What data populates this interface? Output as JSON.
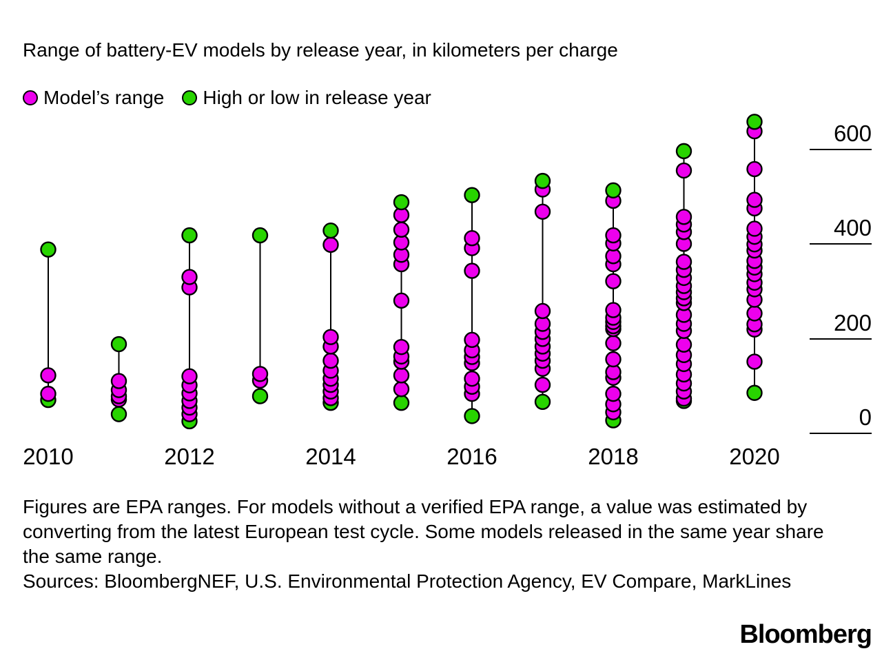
{
  "title": "Range of battery-EV models by release year, in kilometers per charge",
  "legend": {
    "model": {
      "label": "Model’s range",
      "color": "#ED00ED"
    },
    "extreme": {
      "label": "High or low in release year",
      "color": "#28D400"
    }
  },
  "chart_data": {
    "type": "scatter",
    "title": "Range of battery-EV models by release year, in kilometers per charge",
    "ylabel": "kilometers per charge",
    "ylim": [
      0,
      680
    ],
    "yticks": [
      600,
      400,
      200,
      0
    ],
    "xticks": [
      "2010",
      "2012",
      "2014",
      "2016",
      "2018",
      "2020"
    ],
    "grid": "right-side tick rules only",
    "legend_position": "top-left",
    "colors": {
      "model_range": "#ED00ED",
      "high_low_extreme": "#28D400",
      "stem": "#000000"
    },
    "series": [
      {
        "year": "2010",
        "low": 72,
        "high": 390,
        "models": [
          85,
          124
        ]
      },
      {
        "year": "2011",
        "low": 42,
        "high": 190,
        "models": [
          73,
          80,
          93,
          112
        ]
      },
      {
        "year": "2012",
        "low": 27,
        "high": 420,
        "models": [
          42,
          56,
          70,
          86,
          103,
          122,
          310,
          332
        ]
      },
      {
        "year": "2013",
        "low": 80,
        "high": 420,
        "models": [
          113,
          127
        ]
      },
      {
        "year": "2014",
        "low": 66,
        "high": 430,
        "models": [
          76,
          90,
          104,
          117,
          134,
          155,
          185,
          205,
          400
        ]
      },
      {
        "year": "2015",
        "low": 66,
        "high": 490,
        "models": [
          95,
          124,
          153,
          164,
          184,
          282,
          359,
          379,
          405,
          432,
          463
        ]
      },
      {
        "year": "2016",
        "low": 38,
        "high": 505,
        "models": [
          85,
          100,
          117,
          150,
          163,
          177,
          199,
          345,
          393,
          414
        ]
      },
      {
        "year": "2017",
        "low": 68,
        "high": 535,
        "models": [
          104,
          138,
          155,
          170,
          185,
          201,
          216,
          233,
          260,
          470,
          517
        ]
      },
      {
        "year": "2018",
        "low": 29,
        "high": 515,
        "models": [
          46,
          63,
          85,
          119,
          131,
          158,
          192,
          222,
          228,
          237,
          246,
          262,
          323,
          359,
          376,
          403,
          420,
          493
        ]
      },
      {
        "year": "2019",
        "low": 70,
        "high": 598,
        "models": [
          75,
          90,
          107,
          126,
          148,
          167,
          189,
          218,
          233,
          252,
          277,
          287,
          300,
          313,
          330,
          347,
          364,
          402,
          427,
          443,
          459,
          557
        ]
      },
      {
        "year": "2020",
        "low": 87,
        "high": 660,
        "models": [
          153,
          221,
          232,
          255,
          284,
          306,
          320,
          338,
          352,
          366,
          388,
          401,
          417,
          434,
          477,
          495,
          560,
          640
        ]
      }
    ]
  },
  "notes": "Figures are EPA ranges. For models without a verified EPA range, a value was estimated by converting from the latest European test cycle. Some models released in the same year share the same range.",
  "sources": "Sources: BloombergNEF, U.S. Environmental Protection Agency, EV Compare, MarkLines",
  "logo": "Bloomberg"
}
